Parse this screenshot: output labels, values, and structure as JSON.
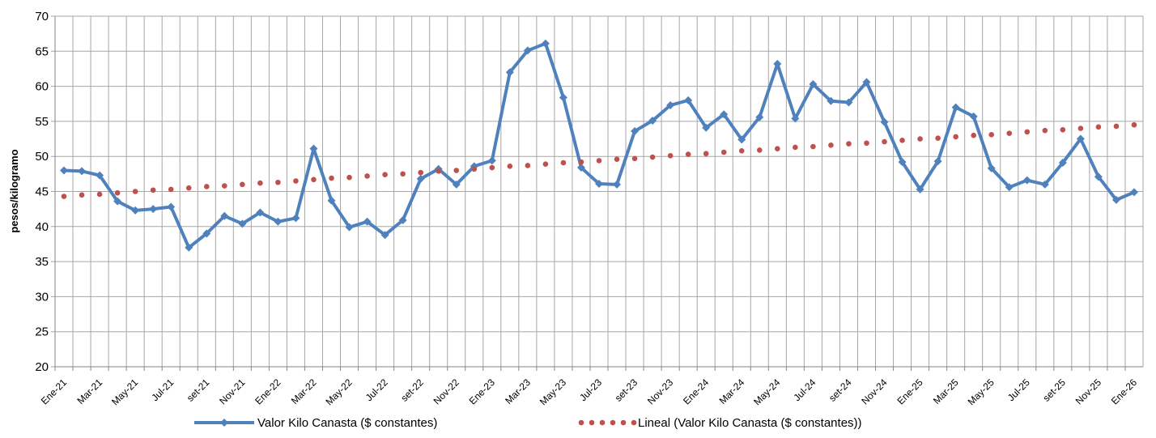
{
  "chart_data": {
    "type": "line",
    "y_label": "pesos/kilogramo",
    "categories": [
      "Ene-21",
      null,
      "Mar-21",
      null,
      "May-21",
      null,
      "Jul-21",
      null,
      "set-21",
      null,
      "Nov-21",
      null,
      "Ene-22",
      null,
      "Mar-22",
      null,
      "May-22",
      null,
      "Jul-22",
      null,
      "set-22",
      null,
      "Nov-22",
      null,
      "Ene-23",
      null,
      "Mar-23",
      null,
      "May-23",
      null,
      "Jul-23",
      null,
      "set-23",
      null,
      "Nov-23",
      null,
      "Ene-24",
      null,
      "Mar-24",
      null,
      "May-24",
      null,
      "Jul-24",
      null,
      "set-24",
      null,
      "Nov-24",
      null,
      "Ene-25",
      null,
      "Mar-25",
      null,
      "May-25",
      null,
      "Jul-25",
      null,
      "set-25",
      null,
      "Nov-25",
      null,
      "Ene-26"
    ],
    "series": [
      {
        "name": "Valor Kilo Canasta ($ constantes)",
        "color": "#4f81bd",
        "style": "solid",
        "marker": "diamond",
        "values": [
          48.0,
          47.9,
          47.3,
          43.6,
          42.3,
          42.5,
          42.8,
          37.0,
          39.0,
          41.5,
          40.4,
          42.0,
          40.7,
          41.2,
          51.1,
          43.7,
          39.9,
          40.7,
          38.8,
          40.9,
          46.8,
          48.2,
          46.0,
          48.6,
          49.4,
          62.0,
          65.1,
          66.1,
          58.4,
          48.4,
          46.1,
          46.0,
          53.6,
          55.1,
          57.3,
          58.0,
          54.1,
          56.0,
          52.4,
          55.6,
          63.2,
          55.4,
          60.3,
          57.9,
          57.7,
          60.6,
          54.9,
          49.2,
          45.3,
          49.3,
          57.0,
          55.7,
          48.3,
          45.6,
          46.6,
          46.0,
          49.1,
          52.5,
          47.1,
          43.8,
          44.9
        ]
      },
      {
        "name": "Lineal (Valor Kilo Canasta ($ constantes))",
        "color": "#c0504d",
        "style": "dotted",
        "marker": "none",
        "values": [
          44.3,
          44.5,
          44.6,
          44.8,
          45.0,
          45.2,
          45.3,
          45.5,
          45.7,
          45.8,
          46.0,
          46.2,
          46.3,
          46.5,
          46.7,
          46.9,
          47.0,
          47.2,
          47.4,
          47.5,
          47.7,
          47.9,
          48.0,
          48.2,
          48.4,
          48.6,
          48.7,
          48.9,
          49.1,
          49.2,
          49.4,
          49.6,
          49.7,
          49.9,
          50.1,
          50.3,
          50.4,
          50.6,
          50.8,
          50.9,
          51.1,
          51.3,
          51.4,
          51.6,
          51.8,
          51.9,
          52.1,
          52.3,
          52.5,
          52.6,
          52.8,
          53.0,
          53.1,
          53.3,
          53.5,
          53.7,
          53.8,
          54.0,
          54.2,
          54.3,
          54.5
        ]
      }
    ],
    "ylim": [
      20,
      70
    ],
    "yticks": [
      20,
      25,
      30,
      35,
      40,
      45,
      50,
      55,
      60,
      65,
      70
    ],
    "grid": true,
    "legend": "bottom"
  }
}
